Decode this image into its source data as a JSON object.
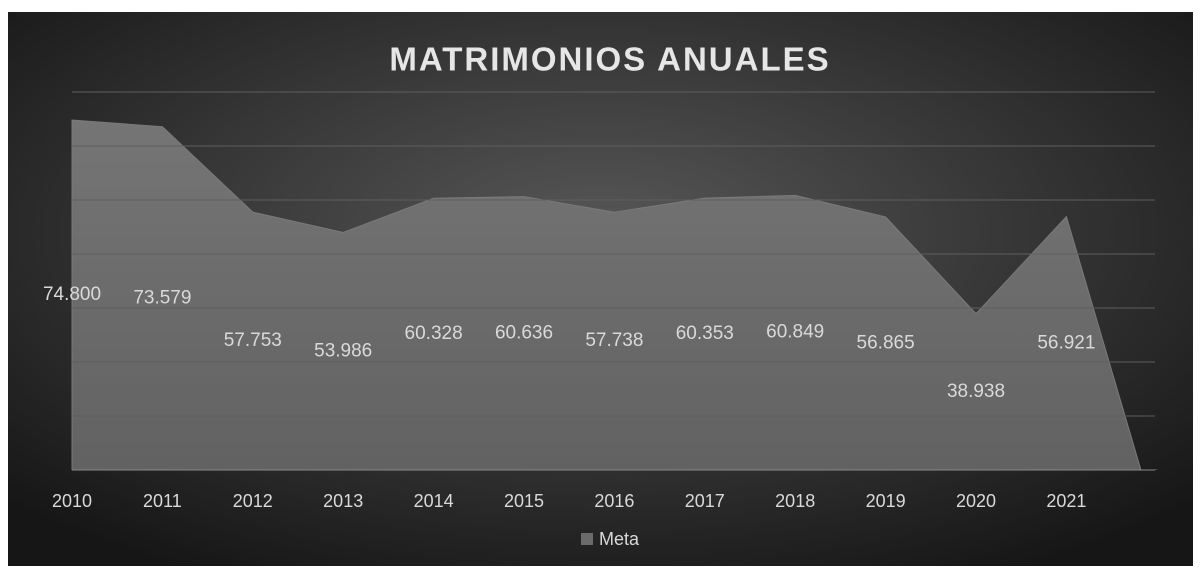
{
  "chart_data": {
    "type": "area",
    "title": "MATRIMONIOS  ANUALES",
    "categories": [
      "2010",
      "2011",
      "2012",
      "2013",
      "2014",
      "2015",
      "2016",
      "2017",
      "2018",
      "2019",
      "2020",
      "2021",
      null
    ],
    "series": [
      {
        "name": "Meta",
        "color": "#6b6b6b",
        "values": [
          74800,
          73579,
          57753,
          53986,
          60328,
          60636,
          57738,
          60353,
          60849,
          56865,
          38938,
          56921,
          0
        ],
        "value_labels": [
          "74.800",
          "73.579",
          "57.753",
          "53.986",
          "60.328",
          "60.636",
          "57.738",
          "60.353",
          "60.849",
          "56.865",
          "38.938",
          "56.921",
          null
        ]
      }
    ],
    "ylim": [
      10000,
      80000
    ],
    "yticks": [
      10000,
      20000,
      30000,
      40000,
      50000,
      60000,
      70000,
      80000
    ],
    "grid": true,
    "legend": "bottom"
  }
}
